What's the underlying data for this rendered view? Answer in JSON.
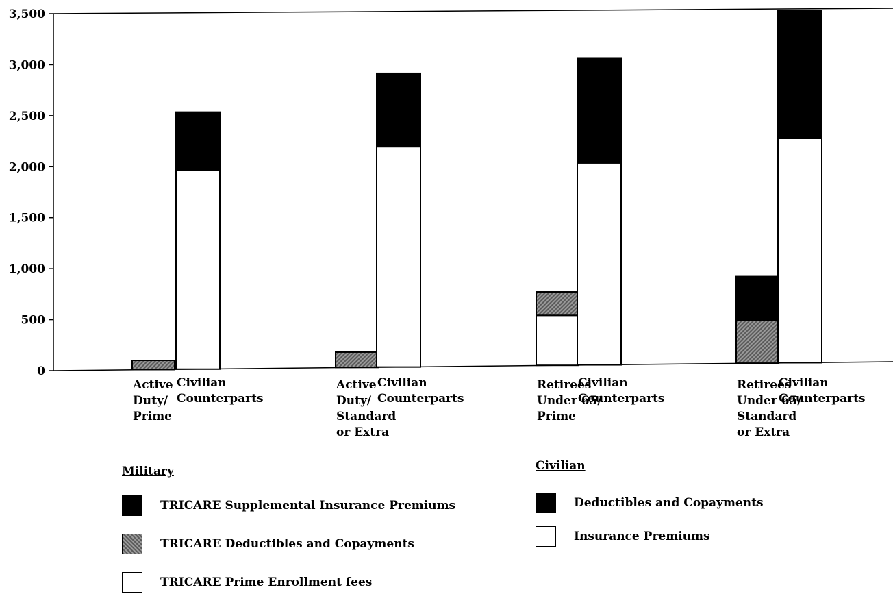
{
  "chart_data": {
    "type": "bar",
    "y_axis": {
      "ylim": [
        0,
        3500
      ],
      "ticks": [
        "0",
        "500",
        "1,000",
        "1,500",
        "2,000",
        "2,500",
        "3,000",
        "3,500"
      ],
      "tick_values": [
        0,
        500,
        1000,
        1500,
        2000,
        2500,
        3000,
        3500
      ]
    },
    "groups": [
      {
        "military": {
          "label_lines": [
            "Active",
            "Duty/",
            "Prime"
          ],
          "segments": {
            "prime_enrollment_fees": 0,
            "deductibles_copayments": 90,
            "supplemental_insurance": 0
          }
        },
        "civilian": {
          "label_lines": [
            "Civilian",
            "Counterparts"
          ],
          "segments": {
            "insurance_premiums": 1950,
            "deductibles_copayments": 570
          }
        }
      },
      {
        "military": {
          "label_lines": [
            "Active",
            "Duty/",
            "Standard",
            "or Extra"
          ],
          "segments": {
            "prime_enrollment_fees": 0,
            "deductibles_copayments": 150,
            "supplemental_insurance": 0
          }
        },
        "civilian": {
          "label_lines": [
            "Civilian",
            "Counterparts"
          ],
          "segments": {
            "insurance_premiums": 2160,
            "deductibles_copayments": 720
          }
        }
      },
      {
        "military": {
          "label_lines": [
            "Retirees",
            "Under 65/",
            "Prime"
          ],
          "segments": {
            "prime_enrollment_fees": 490,
            "deductibles_copayments": 230,
            "supplemental_insurance": 0
          }
        },
        "civilian": {
          "label_lines": [
            "Civilian",
            "Counterparts"
          ],
          "segments": {
            "insurance_premiums": 1980,
            "deductibles_copayments": 1030
          }
        }
      },
      {
        "military": {
          "label_lines": [
            "Retirees",
            "Under 65/",
            "Standard",
            "or Extra"
          ],
          "segments": {
            "prime_enrollment_fees": 0,
            "deductibles_copayments": 420,
            "supplemental_insurance": 430
          }
        },
        "civilian": {
          "label_lines": [
            "Civilian",
            "Counterparts"
          ],
          "segments": {
            "insurance_premiums": 2200,
            "deductibles_copayments": 1250
          }
        }
      }
    ],
    "legend": {
      "military": {
        "title": "Military",
        "items": [
          {
            "key": "supplemental_insurance",
            "label": "TRICARE Supplemental Insurance Premiums",
            "style": "black"
          },
          {
            "key": "deductibles_copayments",
            "label": "TRICARE Deductibles and Copayments",
            "style": "hatch"
          },
          {
            "key": "prime_enrollment_fees",
            "label": "TRICARE Prime Enrollment fees",
            "style": "white"
          }
        ]
      },
      "civilian": {
        "title": "Civilian",
        "items": [
          {
            "key": "deductibles_copayments",
            "label": "Deductibles and Copayments",
            "style": "black"
          },
          {
            "key": "insurance_premiums",
            "label": "Insurance Premiums",
            "style": "white"
          }
        ]
      }
    }
  }
}
